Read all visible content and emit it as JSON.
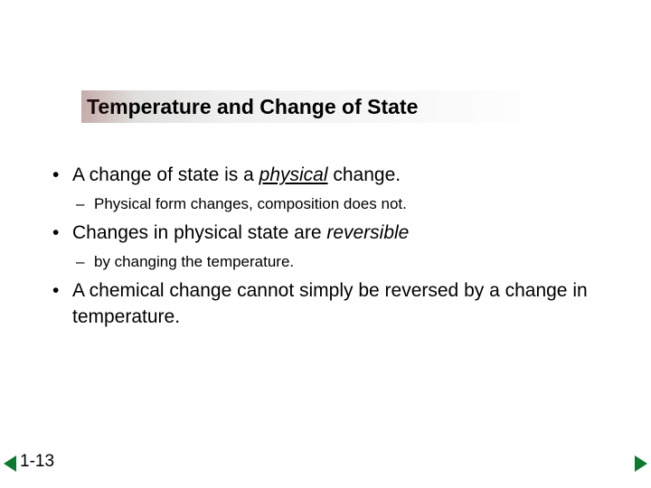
{
  "title": "Temperature and Change of State",
  "bullets": {
    "b1_pre": "A change of state is a ",
    "b1_em": "physical",
    "b1_post": " change.",
    "b1_sub1": "Physical form changes, composition does not.",
    "b2_pre": "Changes in physical state are ",
    "b2_em": "reversible",
    "b2_sub1": "by changing the temperature.",
    "b3": "A chemical change cannot simply be reversed by a change in temperature."
  },
  "slide_number": "1-13",
  "colors": {
    "arrow": "#0b7a2e",
    "text": "#000000",
    "background": "#ffffff"
  },
  "typography": {
    "title_fontsize": 23,
    "bullet_fontsize": 21,
    "subbullet_fontsize": 17,
    "slidenum_fontsize": 19,
    "font_family": "Arial"
  }
}
